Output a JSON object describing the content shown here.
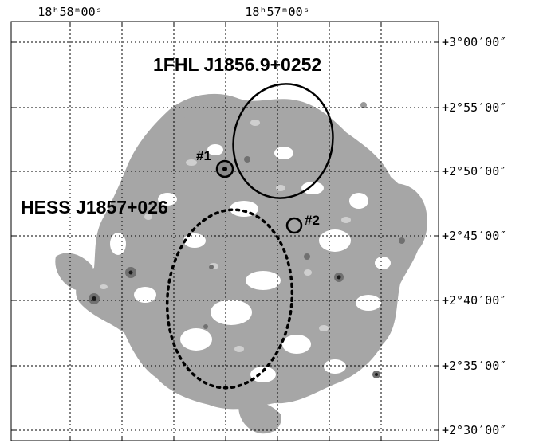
{
  "axes": {
    "ra_ticks": [
      "18ʰ58ᵐ00ˢ",
      "18ʰ57ᵐ00ˢ"
    ],
    "dec_ticks": [
      "+3°00′00″",
      "+2°55′00″",
      "+2°50′00″",
      "+2°45′00″",
      "+2°40′00″",
      "+2°35′00″",
      "+2°30′00″"
    ]
  },
  "sources": {
    "fhl": {
      "label": "1FHL J1856.9+0252"
    },
    "hess": {
      "label": "HESS J1857+026"
    },
    "m1": {
      "label": "#1"
    },
    "m2": {
      "label": "#2"
    }
  },
  "colors": {
    "emission": "#a6a6a6",
    "emission_light": "#cfcfcf",
    "emission_dark": "#707070",
    "ink": "#000000"
  }
}
